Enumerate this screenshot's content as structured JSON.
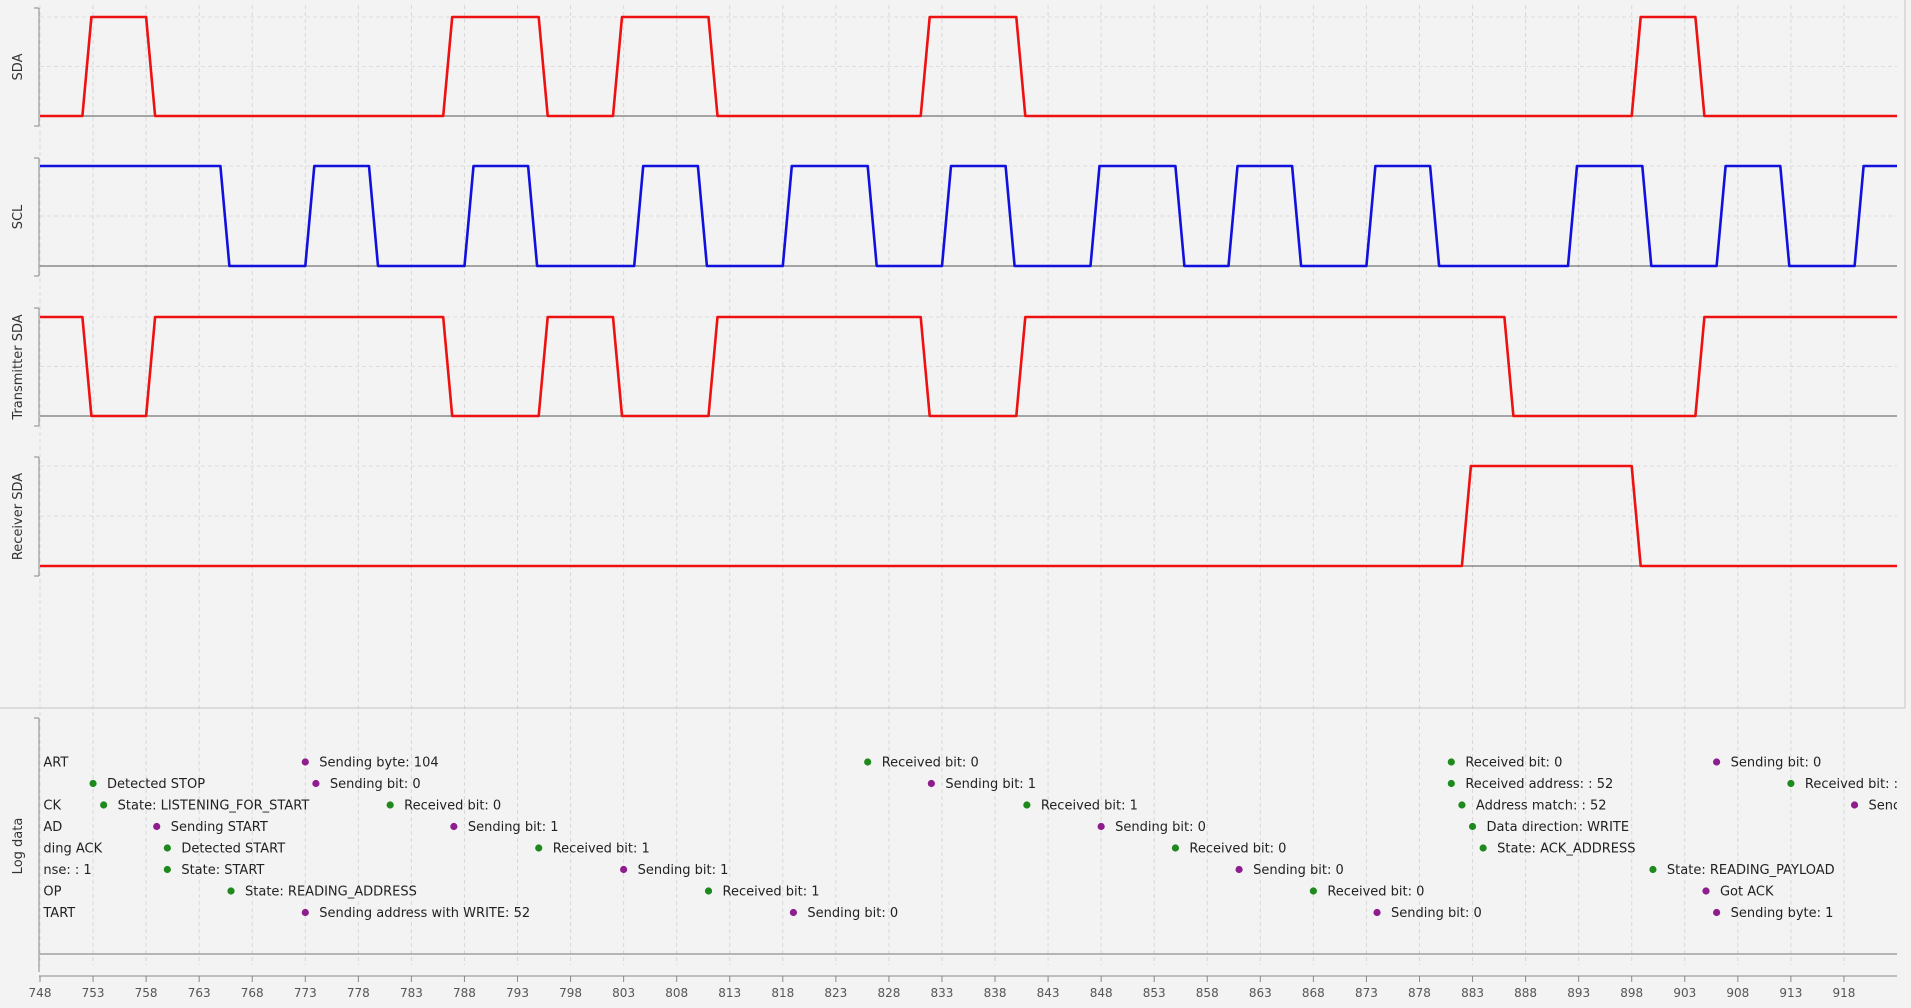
{
  "chart_data": {
    "type": "line",
    "grid": true,
    "x_range": [
      748,
      923
    ],
    "x_ticks": [
      "748",
      "753",
      "758",
      "763",
      "768",
      "773",
      "778",
      "783",
      "788",
      "793",
      "798",
      "803",
      "808",
      "813",
      "818",
      "823",
      "828",
      "833",
      "838",
      "843",
      "848",
      "853",
      "858",
      "863",
      "868",
      "873",
      "878",
      "883",
      "888",
      "893",
      "898",
      "903",
      "908",
      "913",
      "918"
    ],
    "series": [
      {
        "name": "SDA",
        "color": "#ee1111",
        "steps": [
          [
            748,
            0
          ],
          [
            752,
            1
          ],
          [
            758,
            0
          ],
          [
            786,
            1
          ],
          [
            795,
            0
          ],
          [
            802,
            1
          ],
          [
            811,
            0
          ],
          [
            831,
            1
          ],
          [
            840,
            0
          ],
          [
            898,
            1
          ],
          [
            904,
            0
          ],
          [
            923,
            0
          ]
        ]
      },
      {
        "name": "SCL",
        "color": "#1111dd",
        "steps": [
          [
            748,
            1
          ],
          [
            765,
            0
          ],
          [
            773,
            1
          ],
          [
            779,
            0
          ],
          [
            788,
            1
          ],
          [
            794,
            0
          ],
          [
            804,
            1
          ],
          [
            810,
            0
          ],
          [
            818,
            1
          ],
          [
            826,
            0
          ],
          [
            833,
            1
          ],
          [
            839,
            0
          ],
          [
            847,
            1
          ],
          [
            855,
            0
          ],
          [
            860,
            1
          ],
          [
            866,
            0
          ],
          [
            873,
            1
          ],
          [
            879,
            0
          ],
          [
            892,
            1
          ],
          [
            899,
            0
          ],
          [
            906,
            1
          ],
          [
            912,
            0
          ],
          [
            919,
            1
          ],
          [
            923,
            1
          ]
        ]
      },
      {
        "name": "Transmitter SDA",
        "color": "#ee1111",
        "steps": [
          [
            748,
            1
          ],
          [
            752,
            0
          ],
          [
            758,
            1
          ],
          [
            786,
            0
          ],
          [
            795,
            1
          ],
          [
            802,
            0
          ],
          [
            811,
            1
          ],
          [
            831,
            0
          ],
          [
            840,
            1
          ],
          [
            886,
            0
          ],
          [
            904,
            1
          ],
          [
            923,
            1
          ]
        ]
      },
      {
        "name": "Receiver SDA",
        "color": "#ee1111",
        "steps": [
          [
            748,
            0
          ],
          [
            882,
            1
          ],
          [
            898,
            0
          ],
          [
            923,
            0
          ]
        ]
      }
    ],
    "log": {
      "label": "Log data",
      "entries": [
        {
          "x": 747,
          "row": 0,
          "text": "ART",
          "color": "#1e8a1e"
        },
        {
          "x": 747,
          "row": 2,
          "text": "CK",
          "color": "#1e8a1e"
        },
        {
          "x": 747,
          "row": 3,
          "text": "AD",
          "color": "#1e8a1e"
        },
        {
          "x": 747,
          "row": 4,
          "text": "ding ACK",
          "color": "#1e8a1e"
        },
        {
          "x": 747,
          "row": 5,
          "text": "nse: : 1",
          "color": "#1e8a1e"
        },
        {
          "x": 747,
          "row": 6,
          "text": "OP",
          "color": "#1e8a1e"
        },
        {
          "x": 747,
          "row": 7,
          "text": "TART",
          "color": "#1e8a1e"
        },
        {
          "x": 753,
          "row": 1,
          "text": "Detected STOP",
          "color": "#1e8a1e"
        },
        {
          "x": 754,
          "row": 2,
          "text": "State: LISTENING_FOR_START",
          "color": "#1e8a1e"
        },
        {
          "x": 759,
          "row": 3,
          "text": "Sending START",
          "color": "#8e1d8e"
        },
        {
          "x": 760,
          "row": 4,
          "text": "Detected START",
          "color": "#1e8a1e"
        },
        {
          "x": 760,
          "row": 5,
          "text": "State: START",
          "color": "#1e8a1e"
        },
        {
          "x": 766,
          "row": 6,
          "text": "State: READING_ADDRESS",
          "color": "#1e8a1e"
        },
        {
          "x": 773,
          "row": 0,
          "text": "Sending byte: 104",
          "color": "#8e1d8e"
        },
        {
          "x": 774,
          "row": 1,
          "text": "Sending bit: 0",
          "color": "#8e1d8e"
        },
        {
          "x": 773,
          "row": 7,
          "text": "Sending address with WRITE: 52",
          "color": "#8e1d8e"
        },
        {
          "x": 781,
          "row": 2,
          "text": "Received bit: 0",
          "color": "#1e8a1e"
        },
        {
          "x": 787,
          "row": 3,
          "text": "Sending bit: 1",
          "color": "#8e1d8e"
        },
        {
          "x": 795,
          "row": 4,
          "text": "Received bit: 1",
          "color": "#1e8a1e"
        },
        {
          "x": 803,
          "row": 5,
          "text": "Sending bit: 1",
          "color": "#8e1d8e"
        },
        {
          "x": 811,
          "row": 6,
          "text": "Received bit: 1",
          "color": "#1e8a1e"
        },
        {
          "x": 819,
          "row": 7,
          "text": "Sending bit: 0",
          "color": "#8e1d8e"
        },
        {
          "x": 826,
          "row": 0,
          "text": "Received bit: 0",
          "color": "#1e8a1e"
        },
        {
          "x": 832,
          "row": 1,
          "text": "Sending bit: 1",
          "color": "#8e1d8e"
        },
        {
          "x": 841,
          "row": 2,
          "text": "Received bit: 1",
          "color": "#1e8a1e"
        },
        {
          "x": 848,
          "row": 3,
          "text": "Sending bit: 0",
          "color": "#8e1d8e"
        },
        {
          "x": 855,
          "row": 4,
          "text": "Received bit: 0",
          "color": "#1e8a1e"
        },
        {
          "x": 861,
          "row": 5,
          "text": "Sending bit: 0",
          "color": "#8e1d8e"
        },
        {
          "x": 868,
          "row": 6,
          "text": "Received bit: 0",
          "color": "#1e8a1e"
        },
        {
          "x": 874,
          "row": 7,
          "text": "Sending bit: 0",
          "color": "#8e1d8e"
        },
        {
          "x": 881,
          "row": 0,
          "text": "Received bit: 0",
          "color": "#1e8a1e"
        },
        {
          "x": 881,
          "row": 1,
          "text": "Received address: : 52",
          "color": "#1e8a1e"
        },
        {
          "x": 882,
          "row": 2,
          "text": "Address match: : 52",
          "color": "#1e8a1e"
        },
        {
          "x": 883,
          "row": 3,
          "text": "Data direction: WRITE",
          "color": "#1e8a1e"
        },
        {
          "x": 884,
          "row": 4,
          "text": "State: ACK_ADDRESS",
          "color": "#1e8a1e"
        },
        {
          "x": 900,
          "row": 5,
          "text": "State: READING_PAYLOAD",
          "color": "#1e8a1e"
        },
        {
          "x": 905,
          "row": 6,
          "text": "Got ACK",
          "color": "#8e1d8e"
        },
        {
          "x": 906,
          "row": 0,
          "text": "Sending bit: 0",
          "color": "#8e1d8e"
        },
        {
          "x": 906,
          "row": 7,
          "text": "Sending byte: 1",
          "color": "#8e1d8e"
        },
        {
          "x": 913,
          "row": 1,
          "text": "Received bit: :",
          "color": "#1e8a1e"
        },
        {
          "x": 919,
          "row": 2,
          "text": "Senc",
          "color": "#8e1d8e"
        }
      ]
    }
  }
}
